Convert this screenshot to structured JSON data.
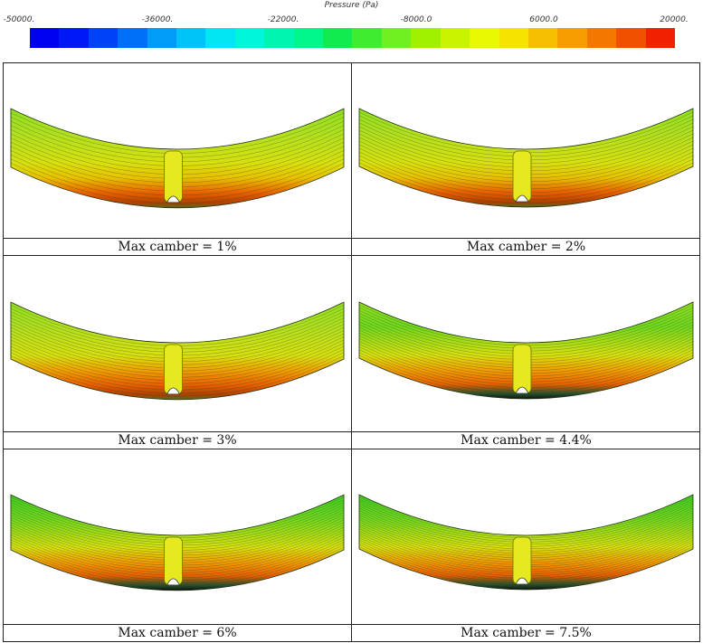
{
  "colorbar": {
    "title": "Pressure (Pa)",
    "ticks": [
      "-50000.",
      "-36000.",
      "-22000.",
      "-8000.0",
      "6000.0",
      "20000."
    ],
    "colors": [
      "#0000f0",
      "#0018f6",
      "#0042f7",
      "#0070f8",
      "#009cf8",
      "#00c4f8",
      "#00e6f4",
      "#00f6d8",
      "#00f6b0",
      "#00f688",
      "#10ec50",
      "#40ec30",
      "#70f020",
      "#a0f000",
      "#c8f400",
      "#e8f800",
      "#f4e400",
      "#f6c000",
      "#f69c00",
      "#f47800",
      "#f05000",
      "#f02000"
    ]
  },
  "panels": [
    {
      "caption": "Max camber = 1%"
    },
    {
      "caption": "Max camber = 2%"
    },
    {
      "caption": "Max camber = 3%"
    },
    {
      "caption": "Max camber = 4.4%"
    },
    {
      "caption": "Max camber = 6%"
    },
    {
      "caption": "Max camber = 7.5%"
    }
  ]
}
